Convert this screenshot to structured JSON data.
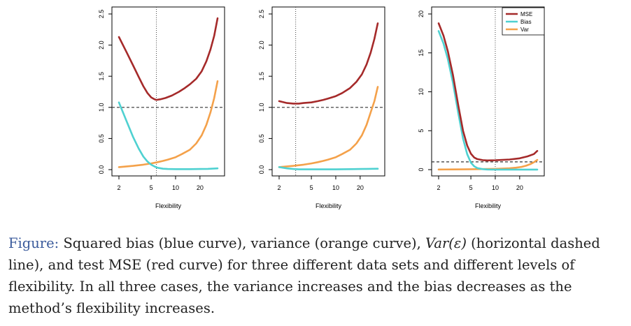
{
  "colors": {
    "mse": "#a52a2a",
    "bias": "#4fd1d1",
    "var": "#f4a14a",
    "axis": "#000000",
    "caption_label": "#3b5b9c"
  },
  "figure_labels": {
    "flex_label": "Flexibility"
  },
  "caption": {
    "label": "Figure:",
    "part1": " Squared bias (blue curve), variance (orange curve), ",
    "math": "Var(ε)",
    "part2": " (horizontal dashed line), and test MSE (red curve) for three different data sets and different levels of flexibility. In all three cases, the variance increases and the bias decreases as the method’s flexibility increases."
  },
  "chart_data": [
    {
      "type": "line",
      "xlabel": "Flexibility",
      "ylabel": "",
      "xscale": "log",
      "xlim": [
        2,
        35
      ],
      "ylim": [
        0,
        2.5
      ],
      "xticks": [
        2,
        5,
        10,
        20
      ],
      "yticks": [
        0.0,
        0.5,
        1.0,
        1.5,
        2.0,
        2.5
      ],
      "ytick_labels": [
        "0.0",
        "0.5",
        "1.0",
        "1.5",
        "2.0",
        "2.5"
      ],
      "hline": 1.0,
      "vline": 5.8,
      "legend": false,
      "series": [
        {
          "key": "mse",
          "x": [
            2,
            2.5,
            3,
            3.5,
            4,
            4.5,
            5,
            5.5,
            5.8,
            6.5,
            7.5,
            9,
            11,
            13,
            15,
            18,
            21,
            24,
            27,
            30,
            33
          ],
          "y": [
            2.13,
            1.88,
            1.67,
            1.49,
            1.34,
            1.23,
            1.16,
            1.13,
            1.12,
            1.13,
            1.15,
            1.19,
            1.25,
            1.31,
            1.37,
            1.46,
            1.58,
            1.74,
            1.93,
            2.15,
            2.43
          ]
        },
        {
          "key": "bias",
          "x": [
            2,
            2.5,
            3,
            3.5,
            4,
            4.5,
            5,
            5.5,
            6,
            7,
            8,
            10,
            15,
            20,
            25,
            33
          ],
          "y": [
            1.08,
            0.77,
            0.52,
            0.34,
            0.21,
            0.13,
            0.08,
            0.05,
            0.03,
            0.015,
            0.01,
            0.008,
            0.008,
            0.01,
            0.012,
            0.02
          ]
        },
        {
          "key": "var",
          "x": [
            2,
            3,
            4,
            5,
            6,
            7,
            8,
            10,
            12,
            15,
            18,
            21,
            24,
            27,
            30,
            33
          ],
          "y": [
            0.04,
            0.06,
            0.08,
            0.1,
            0.12,
            0.14,
            0.16,
            0.2,
            0.25,
            0.32,
            0.42,
            0.55,
            0.72,
            0.92,
            1.15,
            1.42
          ]
        }
      ]
    },
    {
      "type": "line",
      "xlabel": "Flexibility",
      "ylabel": "",
      "xscale": "log",
      "xlim": [
        2,
        35
      ],
      "ylim": [
        0,
        2.5
      ],
      "xticks": [
        2,
        5,
        10,
        20
      ],
      "yticks": [
        0.0,
        0.5,
        1.0,
        1.5,
        2.0,
        2.5
      ],
      "ytick_labels": [
        "0.0",
        "0.5",
        "1.0",
        "1.5",
        "2.0",
        "2.5"
      ],
      "hline": 1.0,
      "vline": 3.2,
      "legend": false,
      "series": [
        {
          "key": "mse",
          "x": [
            2,
            2.5,
            3,
            3.5,
            4,
            5,
            6,
            7,
            8,
            10,
            12,
            15,
            18,
            21,
            24,
            27,
            30,
            33
          ],
          "y": [
            1.1,
            1.07,
            1.06,
            1.06,
            1.07,
            1.08,
            1.1,
            1.12,
            1.14,
            1.18,
            1.23,
            1.31,
            1.41,
            1.53,
            1.69,
            1.88,
            2.1,
            2.35
          ]
        },
        {
          "key": "bias",
          "x": [
            2,
            2.5,
            3,
            3.5,
            4,
            5,
            7,
            10,
            15,
            20,
            25,
            33
          ],
          "y": [
            0.04,
            0.02,
            0.01,
            0.005,
            0.005,
            0.005,
            0.005,
            0.005,
            0.008,
            0.01,
            0.012,
            0.015
          ]
        },
        {
          "key": "var",
          "x": [
            2,
            3,
            4,
            5,
            6,
            7,
            8,
            10,
            12,
            15,
            18,
            21,
            24,
            27,
            30,
            33
          ],
          "y": [
            0.04,
            0.06,
            0.08,
            0.1,
            0.12,
            0.14,
            0.16,
            0.2,
            0.25,
            0.32,
            0.42,
            0.55,
            0.72,
            0.92,
            1.1,
            1.33
          ]
        }
      ]
    },
    {
      "type": "line",
      "xlabel": "Flexibility",
      "ylabel": "",
      "xscale": "log",
      "xlim": [
        2,
        35
      ],
      "ylim": [
        0,
        20
      ],
      "xticks": [
        2,
        5,
        10,
        20
      ],
      "yticks": [
        0,
        5,
        10,
        15,
        20
      ],
      "ytick_labels": [
        "0",
        "5",
        "10",
        "15",
        "20"
      ],
      "hline": 1.0,
      "vline": 10,
      "legend": true,
      "legend_position": "top-right",
      "series": [
        {
          "key": "mse",
          "name": "MSE",
          "x": [
            2,
            2.3,
            2.6,
            3,
            3.5,
            4,
            4.5,
            5,
            5.5,
            6,
            7,
            8,
            10,
            15,
            20,
            25,
            30,
            33
          ],
          "y": [
            18.8,
            17.2,
            15.2,
            12.2,
            8.2,
            5.0,
            3.1,
            2.05,
            1.55,
            1.35,
            1.22,
            1.18,
            1.2,
            1.3,
            1.45,
            1.7,
            2.0,
            2.4
          ]
        },
        {
          "key": "bias",
          "name": "Bias",
          "x": [
            2,
            2.3,
            2.6,
            3,
            3.5,
            4,
            4.5,
            5,
            5.5,
            6,
            7,
            8,
            10,
            15,
            20,
            33
          ],
          "y": [
            17.8,
            16.2,
            14.2,
            11.2,
            7.2,
            4.0,
            2.0,
            0.9,
            0.42,
            0.2,
            0.06,
            0.02,
            0.01,
            0.01,
            0.01,
            0.01
          ]
        },
        {
          "key": "var",
          "name": "Var",
          "x": [
            2,
            3,
            4,
            5,
            6,
            8,
            10,
            12,
            15,
            18,
            21,
            24,
            27,
            30,
            33
          ],
          "y": [
            0.02,
            0.03,
            0.04,
            0.05,
            0.06,
            0.08,
            0.1,
            0.13,
            0.18,
            0.25,
            0.35,
            0.5,
            0.7,
            0.95,
            1.25
          ]
        }
      ]
    }
  ]
}
